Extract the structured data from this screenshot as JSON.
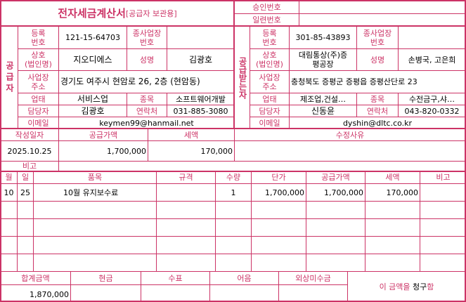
{
  "header": {
    "title": "전자세금계산서",
    "subtitle": "[공급자 보관용]",
    "approval_no_label": "승인번호",
    "approval_no": "",
    "serial_no_label": "일련번호",
    "serial_no": ""
  },
  "labels": {
    "reg_no": "등록\n번호",
    "branch_no": "종사업장\n번호",
    "company": "상호\n(법인명)",
    "ceo": "성명",
    "address": "사업장\n주소",
    "biz_type": "업태",
    "biz_item": "종목",
    "contact_person": "담당자",
    "phone": "연락처",
    "email": "이메일"
  },
  "supplier": {
    "side_label": "공급자",
    "reg_no": "121-15-64703",
    "branch_no": "",
    "company": "지오디에스",
    "ceo": "김광호",
    "address": "경기도 여주시 현암로 26, 2층 (현암동)",
    "biz_type": "서비스업",
    "biz_item": "소프트웨어개발",
    "contact_person": "김광호",
    "phone": "031-885-3080",
    "email": "keymen99@hanmail.net"
  },
  "buyer": {
    "side_label": "공급받는자",
    "reg_no": "301-85-43893",
    "branch_no": "",
    "company": "대림통상(주)증\n평공장",
    "ceo": "손병국, 고은희",
    "address": "충청북도 증평군 증평읍 증평산단로 23",
    "biz_type": "제조업,건설…",
    "biz_item": "수전금구,샤…",
    "contact_person": "신동윤",
    "phone": "043-820-0332",
    "email": "dyshin@dltc.co.kr"
  },
  "summary": {
    "date_label": "작성일자",
    "supply_label": "공급가액",
    "tax_label": "세액",
    "reason_label": "수정사유",
    "date": "2025.10.25",
    "supply": "1,700,000",
    "tax": "170,000",
    "reason": "",
    "remark_label": "비고",
    "remark": ""
  },
  "items": {
    "headers": [
      "월",
      "일",
      "품목",
      "규격",
      "수량",
      "단가",
      "공급가액",
      "세액",
      "비고"
    ],
    "rows": [
      [
        "10",
        "25",
        "10월 유지보수료",
        "",
        "1",
        "1,700,000",
        "1,700,000",
        "170,000",
        ""
      ],
      [
        "",
        "",
        "",
        "",
        "",
        "",
        "",
        "",
        ""
      ],
      [
        "",
        "",
        "",
        "",
        "",
        "",
        "",
        "",
        ""
      ],
      [
        "",
        "",
        "",
        "",
        "",
        "",
        "",
        "",
        ""
      ],
      [
        "",
        "",
        "",
        "",
        "",
        "",
        "",
        "",
        ""
      ]
    ]
  },
  "totals": {
    "headers": [
      "합계금액",
      "현금",
      "수표",
      "어음",
      "외상미수금"
    ],
    "values": [
      "1,870,000",
      "",
      "",
      "",
      ""
    ],
    "claim_prefix": "이 금액을 ",
    "claim_word": "청구",
    "claim_suffix": "함"
  },
  "colors": {
    "accent": "#cc3366"
  }
}
